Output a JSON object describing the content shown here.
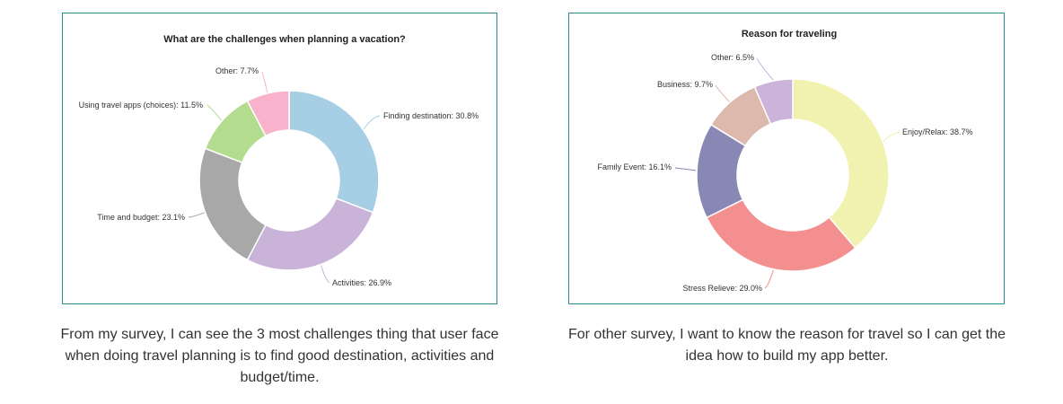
{
  "chart_data": [
    {
      "type": "pie",
      "donut": true,
      "title": "What are the challenges when planning a vacation?",
      "slices": [
        {
          "label": "Finding destination",
          "value": 30.8,
          "display": "Finding destination: 30.8%",
          "color": "#a6cfe5"
        },
        {
          "label": "Activities",
          "value": 26.9,
          "display": "Activities: 26.9%",
          "color": "#c9b3d9"
        },
        {
          "label": "Time and budget",
          "value": 23.1,
          "display": "Time and budget: 23.1%",
          "color": "#a8a8a8"
        },
        {
          "label": "Using travel apps (choices)",
          "value": 11.5,
          "display": "Using travel apps (choices): 11.5%",
          "color": "#b3dc8f"
        },
        {
          "label": "Other",
          "value": 7.7,
          "display": "Other: 7.7%",
          "color": "#f8b2cc"
        }
      ]
    },
    {
      "type": "pie",
      "donut": true,
      "title": "Reason for traveling",
      "slices": [
        {
          "label": "Enjoy/Relax",
          "value": 38.7,
          "display": "Enjoy/Relax: 38.7%",
          "color": "#f2f2b0"
        },
        {
          "label": "Stress Relieve",
          "value": 29.0,
          "display": "Stress Relieve: 29.0%",
          "color": "#f48f90"
        },
        {
          "label": "Family Event",
          "value": 16.1,
          "display": "Family Event: 16.1%",
          "color": "#8987b3"
        },
        {
          "label": "Business",
          "value": 9.7,
          "display": "Business: 9.7%",
          "color": "#dcb8ad"
        },
        {
          "label": "Other",
          "value": 6.5,
          "display": "Other: 6.5%",
          "color": "#cbb3da"
        }
      ]
    }
  ],
  "captions": {
    "left": "From my survey, I can see the 3 most challenges thing that user face when doing travel planning is to find good destination, activities and budget/time.",
    "right": "For other survey, I want to know the reason for travel so I can get the idea how to build my app better."
  }
}
